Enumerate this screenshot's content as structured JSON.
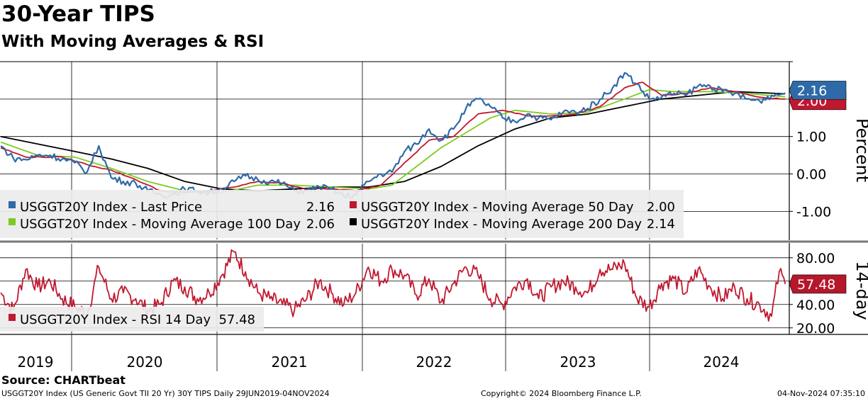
{
  "header": {
    "title": "30-Year TIPS",
    "subtitle": "With Moving Averages & RSI"
  },
  "footer": {
    "source": "Source: CHARTbeat",
    "description": "USGGT20Y Index (US Generic Govt TII 20 Yr) 30Y TIPS  Daily 29JUN2019-04NOV2024",
    "copyright": "Copyright© 2024 Bloomberg Finance L.P.",
    "timestamp": "04-Nov-2024 07:35:10"
  },
  "colors": {
    "last_price": "#2e6aa8",
    "ma50": "#c0182f",
    "ma100": "#7ccb21",
    "ma200": "#000000",
    "rsi": "#c0182f",
    "rsi_tag": "#b5172b",
    "price_tag": "#2e6aa8"
  },
  "chart_data": [
    {
      "type": "line",
      "ylabel": "Percent",
      "ylim": [
        -1.75,
        3.0
      ],
      "yticks": [
        "1.00",
        "0.00",
        "-1.00"
      ],
      "x_years": [
        "2019",
        "2020",
        "2021",
        "2022",
        "2023",
        "2024"
      ],
      "grid": true,
      "legend_placement": "bottom-left",
      "series": [
        {
          "key": "last_price",
          "legend_label": "USGGT20Y Index - Last Price",
          "legend_value": "2.16",
          "points": [
            [
              "2019-07-01",
              0.75
            ],
            [
              "2019-08-01",
              0.42
            ],
            [
              "2019-09-01",
              0.38
            ],
            [
              "2019-10-01",
              0.5
            ],
            [
              "2019-11-01",
              0.5
            ],
            [
              "2019-12-01",
              0.4
            ],
            [
              "2020-01-01",
              0.3
            ],
            [
              "2020-02-01",
              0.05
            ],
            [
              "2020-03-01",
              0.75
            ],
            [
              "2020-04-01",
              -0.1
            ],
            [
              "2020-05-01",
              -0.2
            ],
            [
              "2020-06-01",
              -0.25
            ],
            [
              "2020-07-01",
              -0.45
            ],
            [
              "2020-08-01",
              -0.55
            ],
            [
              "2020-09-01",
              -0.55
            ],
            [
              "2020-10-01",
              -0.4
            ],
            [
              "2020-11-01",
              -0.45
            ],
            [
              "2020-12-01",
              -0.5
            ],
            [
              "2021-01-01",
              -0.4
            ],
            [
              "2021-02-01",
              -0.2
            ],
            [
              "2021-03-01",
              -0.05
            ],
            [
              "2021-04-01",
              -0.15
            ],
            [
              "2021-05-01",
              -0.2
            ],
            [
              "2021-06-01",
              -0.25
            ],
            [
              "2021-07-01",
              -0.45
            ],
            [
              "2021-08-01",
              -0.45
            ],
            [
              "2021-09-01",
              -0.35
            ],
            [
              "2021-10-01",
              -0.4
            ],
            [
              "2021-11-01",
              -0.6
            ],
            [
              "2021-12-01",
              -0.55
            ],
            [
              "2022-01-01",
              -0.2
            ],
            [
              "2022-02-01",
              0.0
            ],
            [
              "2022-03-01",
              0.05
            ],
            [
              "2022-04-01",
              0.6
            ],
            [
              "2022-05-01",
              0.8
            ],
            [
              "2022-06-01",
              1.2
            ],
            [
              "2022-07-01",
              0.9
            ],
            [
              "2022-08-01",
              1.2
            ],
            [
              "2022-09-01",
              1.75
            ],
            [
              "2022-10-01",
              2.0
            ],
            [
              "2022-11-01",
              1.8
            ],
            [
              "2022-12-01",
              1.5
            ],
            [
              "2023-01-01",
              1.4
            ],
            [
              "2023-02-01",
              1.6
            ],
            [
              "2023-03-01",
              1.5
            ],
            [
              "2023-04-01",
              1.45
            ],
            [
              "2023-05-01",
              1.65
            ],
            [
              "2023-06-01",
              1.65
            ],
            [
              "2023-07-01",
              1.75
            ],
            [
              "2023-08-01",
              2.0
            ],
            [
              "2023-09-01",
              2.3
            ],
            [
              "2023-10-01",
              2.7
            ],
            [
              "2023-11-01",
              2.4
            ],
            [
              "2023-12-01",
              2.0
            ],
            [
              "2024-01-01",
              2.05
            ],
            [
              "2024-02-01",
              2.15
            ],
            [
              "2024-03-01",
              2.1
            ],
            [
              "2024-04-01",
              2.35
            ],
            [
              "2024-05-01",
              2.35
            ],
            [
              "2024-06-01",
              2.2
            ],
            [
              "2024-07-01",
              2.15
            ],
            [
              "2024-08-01",
              2.0
            ],
            [
              "2024-09-01",
              1.95
            ],
            [
              "2024-10-01",
              2.1
            ],
            [
              "2024-11-04",
              2.16
            ]
          ]
        },
        {
          "key": "ma50",
          "legend_label": "USGGT20Y Index - Moving Average 50 Day",
          "legend_value": "2.00",
          "points": [
            [
              "2019-07-01",
              0.7
            ],
            [
              "2019-09-01",
              0.45
            ],
            [
              "2019-12-01",
              0.45
            ],
            [
              "2020-02-01",
              0.25
            ],
            [
              "2020-04-01",
              0.1
            ],
            [
              "2020-06-01",
              -0.15
            ],
            [
              "2020-08-01",
              -0.45
            ],
            [
              "2020-10-01",
              -0.5
            ],
            [
              "2020-12-01",
              -0.45
            ],
            [
              "2021-02-01",
              -0.35
            ],
            [
              "2021-04-01",
              -0.2
            ],
            [
              "2021-06-01",
              -0.25
            ],
            [
              "2021-08-01",
              -0.4
            ],
            [
              "2021-10-01",
              -0.4
            ],
            [
              "2021-12-01",
              -0.45
            ],
            [
              "2022-02-01",
              -0.3
            ],
            [
              "2022-04-01",
              0.3
            ],
            [
              "2022-06-01",
              0.9
            ],
            [
              "2022-08-01",
              1.0
            ],
            [
              "2022-10-01",
              1.6
            ],
            [
              "2022-12-01",
              1.7
            ],
            [
              "2023-02-01",
              1.55
            ],
            [
              "2023-04-01",
              1.55
            ],
            [
              "2023-06-01",
              1.6
            ],
            [
              "2023-08-01",
              1.8
            ],
            [
              "2023-10-01",
              2.3
            ],
            [
              "2023-11-15",
              2.45
            ],
            [
              "2024-01-01",
              2.1
            ],
            [
              "2024-03-01",
              2.15
            ],
            [
              "2024-05-01",
              2.3
            ],
            [
              "2024-07-01",
              2.2
            ],
            [
              "2024-09-01",
              2.05
            ],
            [
              "2024-11-04",
              2.0
            ]
          ]
        },
        {
          "key": "ma100",
          "legend_label": "USGGT20Y Index - Moving Average 100 Day",
          "legend_value": "2.06",
          "points": [
            [
              "2019-07-01",
              0.85
            ],
            [
              "2019-10-01",
              0.5
            ],
            [
              "2020-01-01",
              0.45
            ],
            [
              "2020-04-01",
              0.15
            ],
            [
              "2020-07-01",
              -0.2
            ],
            [
              "2020-10-01",
              -0.45
            ],
            [
              "2021-01-01",
              -0.5
            ],
            [
              "2021-04-01",
              -0.3
            ],
            [
              "2021-07-01",
              -0.3
            ],
            [
              "2021-10-01",
              -0.35
            ],
            [
              "2022-01-01",
              -0.4
            ],
            [
              "2022-03-01",
              -0.3
            ],
            [
              "2022-05-01",
              0.2
            ],
            [
              "2022-07-01",
              0.7
            ],
            [
              "2022-09-01",
              1.1
            ],
            [
              "2022-11-01",
              1.5
            ],
            [
              "2023-01-01",
              1.7
            ],
            [
              "2023-04-01",
              1.6
            ],
            [
              "2023-07-01",
              1.65
            ],
            [
              "2023-10-01",
              2.0
            ],
            [
              "2023-12-01",
              2.25
            ],
            [
              "2024-02-01",
              2.2
            ],
            [
              "2024-05-01",
              2.2
            ],
            [
              "2024-08-01",
              2.15
            ],
            [
              "2024-11-04",
              2.06
            ]
          ]
        },
        {
          "key": "ma200",
          "legend_label": "USGGT20Y Index - Moving Average 200 Day",
          "legend_value": "2.14",
          "points": [
            [
              "2019-07-01",
              1.0
            ],
            [
              "2019-10-01",
              0.8
            ],
            [
              "2020-01-01",
              0.6
            ],
            [
              "2020-04-01",
              0.4
            ],
            [
              "2020-07-01",
              0.15
            ],
            [
              "2020-10-01",
              -0.2
            ],
            [
              "2021-01-01",
              -0.4
            ],
            [
              "2021-04-01",
              -0.45
            ],
            [
              "2021-07-01",
              -0.4
            ],
            [
              "2021-10-01",
              -0.35
            ],
            [
              "2022-01-01",
              -0.35
            ],
            [
              "2022-04-01",
              -0.2
            ],
            [
              "2022-07-01",
              0.2
            ],
            [
              "2022-10-01",
              0.75
            ],
            [
              "2023-01-01",
              1.2
            ],
            [
              "2023-04-01",
              1.5
            ],
            [
              "2023-07-01",
              1.6
            ],
            [
              "2023-10-01",
              1.8
            ],
            [
              "2024-01-01",
              2.0
            ],
            [
              "2024-04-01",
              2.1
            ],
            [
              "2024-07-01",
              2.2
            ],
            [
              "2024-11-04",
              2.14
            ]
          ]
        }
      ],
      "tags": [
        {
          "series": "last_price",
          "value": 2.16,
          "label": "2.16"
        },
        {
          "series": "ma50",
          "value": 2.0,
          "label": "2.00"
        }
      ]
    },
    {
      "type": "line",
      "ylabel": "14-day",
      "ylim": [
        15,
        92
      ],
      "yticks": [
        "80.00",
        "60.00",
        "40.00",
        "20.00"
      ],
      "grid": true,
      "legend_placement": "bottom-left",
      "series": [
        {
          "key": "rsi",
          "legend_label": "USGGT20Y Index - RSI 14 Day",
          "legend_value": "57.48",
          "points": [
            [
              "2019-07-01",
              50
            ],
            [
              "2019-08-01",
              35
            ],
            [
              "2019-09-01",
              70
            ],
            [
              "2019-10-01",
              55
            ],
            [
              "2019-11-01",
              60
            ],
            [
              "2019-12-01",
              45
            ],
            [
              "2020-01-01",
              38
            ],
            [
              "2020-02-01",
              32
            ],
            [
              "2020-03-01",
              72
            ],
            [
              "2020-04-01",
              45
            ],
            [
              "2020-05-01",
              50
            ],
            [
              "2020-06-01",
              45
            ],
            [
              "2020-07-01",
              35
            ],
            [
              "2020-08-01",
              40
            ],
            [
              "2020-09-01",
              60
            ],
            [
              "2020-10-01",
              55
            ],
            [
              "2020-11-01",
              45
            ],
            [
              "2020-12-01",
              50
            ],
            [
              "2021-01-01",
              65
            ],
            [
              "2021-02-01",
              85
            ],
            [
              "2021-03-01",
              68
            ],
            [
              "2021-04-01",
              50
            ],
            [
              "2021-05-01",
              45
            ],
            [
              "2021-06-01",
              40
            ],
            [
              "2021-07-01",
              35
            ],
            [
              "2021-08-01",
              45
            ],
            [
              "2021-09-01",
              60
            ],
            [
              "2021-10-01",
              50
            ],
            [
              "2021-11-01",
              40
            ],
            [
              "2021-12-01",
              50
            ],
            [
              "2022-01-01",
              72
            ],
            [
              "2022-02-01",
              60
            ],
            [
              "2022-03-01",
              70
            ],
            [
              "2022-04-01",
              65
            ],
            [
              "2022-05-01",
              48
            ],
            [
              "2022-06-01",
              62
            ],
            [
              "2022-07-01",
              42
            ],
            [
              "2022-08-01",
              58
            ],
            [
              "2022-09-01",
              72
            ],
            [
              "2022-10-01",
              65
            ],
            [
              "2022-11-01",
              45
            ],
            [
              "2022-12-01",
              40
            ],
            [
              "2023-01-01",
              55
            ],
            [
              "2023-02-01",
              62
            ],
            [
              "2023-03-01",
              45
            ],
            [
              "2023-04-01",
              55
            ],
            [
              "2023-05-01",
              60
            ],
            [
              "2023-06-01",
              55
            ],
            [
              "2023-07-01",
              50
            ],
            [
              "2023-08-01",
              70
            ],
            [
              "2023-09-01",
              70
            ],
            [
              "2023-10-01",
              75
            ],
            [
              "2023-11-01",
              45
            ],
            [
              "2023-12-01",
              38
            ],
            [
              "2024-01-01",
              58
            ],
            [
              "2024-02-01",
              62
            ],
            [
              "2024-03-01",
              50
            ],
            [
              "2024-04-01",
              70
            ],
            [
              "2024-05-01",
              55
            ],
            [
              "2024-06-01",
              45
            ],
            [
              "2024-07-01",
              55
            ],
            [
              "2024-08-01",
              45
            ],
            [
              "2024-09-01",
              40
            ],
            [
              "2024-10-01",
              30
            ],
            [
              "2024-10-20",
              68
            ],
            [
              "2024-11-04",
              57.48
            ]
          ]
        }
      ],
      "tags": [
        {
          "series": "rsi",
          "value": 57.48,
          "label": "57.48"
        }
      ]
    }
  ]
}
